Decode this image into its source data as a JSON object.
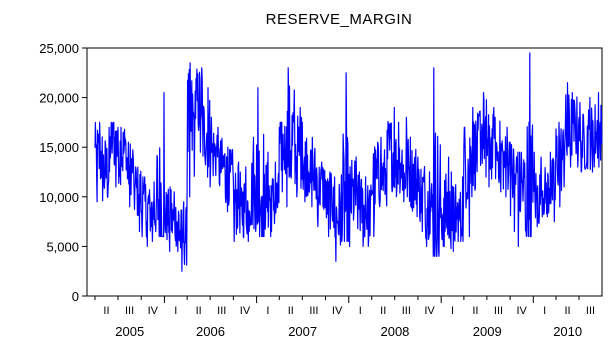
{
  "chart_data": {
    "type": "line",
    "title": "RESERVE_MARGIN",
    "xlabel": "",
    "ylabel": "",
    "ylim": [
      0,
      25000
    ],
    "yticks": [
      0,
      5000,
      10000,
      15000,
      20000,
      25000
    ],
    "ytick_labels": [
      "0",
      "5,000",
      "10,000",
      "15,000",
      "20,000",
      "25,000"
    ],
    "x_range": [
      "2005-04-01",
      "2010-09-30"
    ],
    "quarter_tick_labels": [
      "II",
      "III",
      "IV",
      "I",
      "II",
      "III",
      "IV",
      "I",
      "II",
      "III",
      "IV",
      "I",
      "II",
      "III",
      "IV",
      "I",
      "II",
      "III",
      "IV",
      "I",
      "II",
      "III"
    ],
    "year_labels": [
      "2005",
      "2006",
      "2007",
      "2008",
      "2009",
      "2010"
    ],
    "grid": false,
    "series": [
      {
        "color": "#0000ff",
        "x": [
          "2005-04",
          "2005-05",
          "2005-06",
          "2005-07",
          "2005-08",
          "2005-09",
          "2005-10",
          "2005-11",
          "2005-12",
          "2006-01",
          "2006-02",
          "2006-03",
          "2006-04",
          "2006-05",
          "2006-06",
          "2006-07",
          "2006-08",
          "2006-09",
          "2006-10",
          "2006-11",
          "2006-12",
          "2007-01",
          "2007-02",
          "2007-03",
          "2007-04",
          "2007-05",
          "2007-06",
          "2007-07",
          "2007-08",
          "2007-09",
          "2007-10",
          "2007-11",
          "2007-12",
          "2008-01",
          "2008-02",
          "2008-03",
          "2008-04",
          "2008-05",
          "2008-06",
          "2008-07",
          "2008-08",
          "2008-09",
          "2008-10",
          "2008-11",
          "2008-12",
          "2009-01",
          "2009-02",
          "2009-03",
          "2009-04",
          "2009-05",
          "2009-06",
          "2009-07",
          "2009-08",
          "2009-09",
          "2009-10",
          "2009-11",
          "2009-12",
          "2010-01",
          "2010-02",
          "2010-03",
          "2010-04",
          "2010-05",
          "2010-06",
          "2010-07",
          "2010-08",
          "2010-09"
        ],
        "values": [
          14000,
          12500,
          15500,
          14500,
          13000,
          10500,
          9000,
          8500,
          10000,
          8000,
          7500,
          6000,
          17000,
          19500,
          16500,
          14500,
          13000,
          12000,
          9500,
          9000,
          10500,
          11000,
          10000,
          9500,
          15000,
          15500,
          14500,
          13500,
          12000,
          11000,
          9500,
          8000,
          9000,
          10000,
          9000,
          8500,
          11500,
          12000,
          14500,
          13500,
          12500,
          12000,
          10500,
          9000,
          9500,
          8500,
          8000,
          8000,
          13500,
          14500,
          16500,
          15000,
          14500,
          13500,
          12000,
          11000,
          10500,
          10000,
          10500,
          11000,
          14000,
          16000,
          17000,
          15500,
          16000,
          16500
        ],
        "highs": [
          17500,
          17000,
          17500,
          17000,
          15500,
          13000,
          12000,
          11500,
          20500,
          11000,
          10500,
          9500,
          23500,
          23000,
          21000,
          18000,
          17000,
          15000,
          13500,
          13000,
          16000,
          21000,
          14500,
          13500,
          17500,
          23000,
          19000,
          17500,
          16000,
          13500,
          12500,
          12000,
          22500,
          14000,
          12500,
          12000,
          15500,
          16000,
          19000,
          17500,
          18000,
          16000,
          14000,
          12500,
          23000,
          14000,
          12500,
          12000,
          17000,
          19000,
          20500,
          19000,
          18000,
          17000,
          15500,
          14500,
          24500,
          14500,
          14000,
          14500,
          17500,
          21500,
          20500,
          19500,
          20000,
          20500
        ],
        "lows": [
          9500,
          8500,
          11000,
          9500,
          9000,
          6500,
          5000,
          5500,
          6000,
          4500,
          4500,
          2500,
          10000,
          14500,
          12000,
          11000,
          10000,
          8500,
          5500,
          5500,
          6500,
          6000,
          6000,
          6500,
          10500,
          9000,
          10000,
          9500,
          8000,
          7000,
          6000,
          3500,
          5500,
          5000,
          5000,
          5000,
          6000,
          9000,
          10500,
          10000,
          9500,
          8000,
          6500,
          5000,
          4000,
          5000,
          4500,
          5500,
          6000,
          10000,
          12000,
          11000,
          10500,
          10000,
          6500,
          5000,
          6000,
          7000,
          8000,
          7500,
          9000,
          11000,
          13000,
          12500,
          12500,
          13000
        ]
      }
    ]
  }
}
